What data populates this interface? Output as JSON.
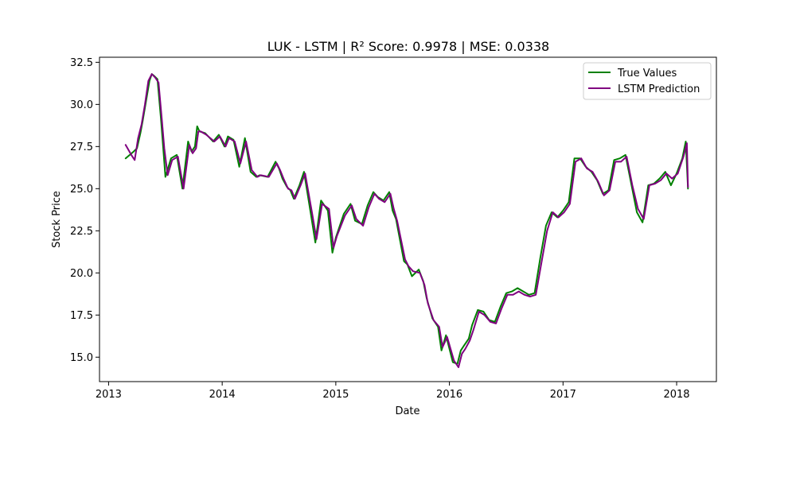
{
  "chart_data": {
    "type": "line",
    "title": "LUK - LSTM | R² Score: 0.9978 | MSE: 0.0338",
    "xlabel": "Date",
    "ylabel": "Stock Price",
    "xlim": [
      2012.92,
      2018.35
    ],
    "ylim": [
      13.55,
      32.8
    ],
    "xticks": [
      2013,
      2014,
      2015,
      2016,
      2017,
      2018
    ],
    "xtick_labels": [
      "2013",
      "2014",
      "2015",
      "2016",
      "2017",
      "2018"
    ],
    "yticks": [
      15.0,
      17.5,
      20.0,
      22.5,
      25.0,
      27.5,
      30.0,
      32.5
    ],
    "ytick_labels": [
      "15.0",
      "17.5",
      "20.0",
      "22.5",
      "25.0",
      "27.5",
      "30.0",
      "32.5"
    ],
    "grid": false,
    "legend_position": "top-right",
    "series": [
      {
        "name": "True Values",
        "color": "#008000",
        "x": [
          2013.15,
          2013.22,
          2013.25,
          2013.28,
          2013.3,
          2013.33,
          2013.36,
          2013.38,
          2013.4,
          2013.43,
          2013.46,
          2013.48,
          2013.5,
          2013.55,
          2013.6,
          2013.65,
          2013.7,
          2013.73,
          2013.76,
          2013.78,
          2013.8,
          2013.85,
          2013.92,
          2013.97,
          2014.02,
          2014.05,
          2014.1,
          2014.15,
          2014.2,
          2014.25,
          2014.3,
          2014.33,
          2014.4,
          2014.47,
          2014.5,
          2014.53,
          2014.57,
          2014.6,
          2014.63,
          2014.68,
          2014.72,
          2014.78,
          2014.82,
          2014.87,
          2014.93,
          2014.97,
          2015.0,
          2015.07,
          2015.13,
          2015.17,
          2015.23,
          2015.28,
          2015.33,
          2015.37,
          2015.42,
          2015.47,
          2015.5,
          2015.53,
          2015.6,
          2015.63,
          2015.67,
          2015.73,
          2015.77,
          2015.8,
          2015.85,
          2015.9,
          2015.93,
          2015.97,
          2016.03,
          2016.07,
          2016.1,
          2016.13,
          2016.17,
          2016.2,
          2016.25,
          2016.3,
          2016.35,
          2016.4,
          2016.45,
          2016.5,
          2016.55,
          2016.6,
          2016.65,
          2016.7,
          2016.75,
          2016.8,
          2016.85,
          2016.9,
          2016.95,
          2017.0,
          2017.05,
          2017.1,
          2017.15,
          2017.2,
          2017.25,
          2017.3,
          2017.35,
          2017.4,
          2017.45,
          2017.5,
          2017.55,
          2017.6,
          2017.65,
          2017.7,
          2017.75,
          2017.8,
          2017.85,
          2017.9,
          2017.95,
          2018.0,
          2018.05,
          2018.08,
          2018.1
        ],
        "y": [
          26.8,
          27.2,
          27.4,
          28.3,
          29.0,
          30.2,
          31.4,
          31.8,
          31.7,
          31.5,
          29.2,
          27.5,
          25.7,
          26.8,
          27.0,
          25.0,
          27.8,
          27.2,
          27.5,
          28.7,
          28.4,
          28.3,
          27.8,
          28.2,
          27.5,
          28.1,
          27.9,
          26.3,
          28.0,
          26.0,
          25.7,
          25.8,
          25.7,
          26.6,
          26.2,
          25.6,
          25.1,
          24.9,
          24.4,
          25.2,
          26.0,
          23.5,
          21.8,
          24.3,
          23.7,
          21.2,
          22.1,
          23.5,
          24.1,
          23.1,
          22.9,
          24.0,
          24.8,
          24.5,
          24.3,
          24.8,
          23.7,
          23.2,
          20.7,
          20.5,
          19.8,
          20.2,
          19.5,
          18.5,
          17.3,
          16.8,
          15.4,
          16.3,
          14.7,
          14.6,
          15.4,
          15.7,
          16.1,
          16.9,
          17.8,
          17.7,
          17.2,
          17.1,
          18.0,
          18.8,
          18.9,
          19.1,
          18.9,
          18.7,
          18.8,
          20.9,
          22.8,
          23.6,
          23.3,
          23.7,
          24.2,
          26.8,
          26.8,
          26.3,
          26.0,
          25.5,
          24.7,
          24.9,
          26.7,
          26.8,
          27.0,
          25.3,
          23.6,
          23.0,
          25.2,
          25.3,
          25.6,
          26.0,
          25.2,
          25.9,
          26.8,
          27.8,
          25.0
        ],
        "line_width": 2
      },
      {
        "name": "LSTM Prediction",
        "color": "#800080",
        "x": [
          2013.15,
          2013.2,
          2013.23,
          2013.26,
          2013.29,
          2013.32,
          2013.35,
          2013.38,
          2013.41,
          2013.44,
          2013.47,
          2013.49,
          2013.52,
          2013.56,
          2013.61,
          2013.66,
          2013.71,
          2013.74,
          2013.77,
          2013.79,
          2013.81,
          2013.86,
          2013.93,
          2013.98,
          2014.03,
          2014.06,
          2014.11,
          2014.16,
          2014.21,
          2014.26,
          2014.31,
          2014.34,
          2014.41,
          2014.48,
          2014.51,
          2014.54,
          2014.58,
          2014.61,
          2014.64,
          2014.69,
          2014.73,
          2014.79,
          2014.83,
          2014.88,
          2014.94,
          2014.98,
          2015.01,
          2015.08,
          2015.14,
          2015.18,
          2015.24,
          2015.29,
          2015.34,
          2015.38,
          2015.43,
          2015.48,
          2015.51,
          2015.54,
          2015.61,
          2015.64,
          2015.68,
          2015.74,
          2015.78,
          2015.81,
          2015.86,
          2015.91,
          2015.94,
          2015.98,
          2016.04,
          2016.08,
          2016.11,
          2016.14,
          2016.18,
          2016.21,
          2016.26,
          2016.31,
          2016.36,
          2016.41,
          2016.46,
          2016.51,
          2016.56,
          2016.61,
          2016.66,
          2016.71,
          2016.76,
          2016.81,
          2016.86,
          2016.91,
          2016.96,
          2017.01,
          2017.06,
          2017.11,
          2017.16,
          2017.21,
          2017.26,
          2017.31,
          2017.36,
          2017.41,
          2017.46,
          2017.51,
          2017.56,
          2017.61,
          2017.66,
          2017.71,
          2017.76,
          2017.81,
          2017.86,
          2017.91,
          2017.96,
          2018.01,
          2018.06,
          2018.09,
          2018.1
        ],
        "y": [
          27.6,
          27.0,
          26.7,
          28.0,
          28.8,
          30.0,
          31.4,
          31.8,
          31.6,
          31.3,
          29.0,
          27.4,
          25.8,
          26.7,
          26.9,
          25.0,
          27.6,
          27.1,
          27.4,
          28.4,
          28.4,
          28.2,
          27.8,
          28.1,
          27.5,
          28.0,
          27.8,
          26.5,
          27.8,
          26.1,
          25.7,
          25.8,
          25.7,
          26.5,
          26.1,
          25.6,
          25.0,
          24.9,
          24.4,
          25.2,
          25.9,
          23.6,
          22.0,
          24.1,
          23.8,
          21.5,
          22.2,
          23.4,
          24.0,
          23.2,
          22.8,
          23.9,
          24.7,
          24.4,
          24.2,
          24.7,
          23.8,
          23.1,
          20.8,
          20.4,
          20.1,
          20.0,
          19.3,
          18.2,
          17.2,
          16.8,
          15.6,
          16.2,
          14.8,
          14.4,
          15.2,
          15.5,
          16.0,
          16.6,
          17.7,
          17.5,
          17.1,
          17.0,
          17.9,
          18.7,
          18.7,
          18.9,
          18.7,
          18.6,
          18.7,
          20.6,
          22.5,
          23.6,
          23.3,
          23.6,
          24.1,
          26.6,
          26.8,
          26.2,
          26.0,
          25.4,
          24.6,
          24.9,
          26.6,
          26.6,
          26.9,
          25.2,
          23.8,
          23.2,
          25.2,
          25.3,
          25.5,
          25.9,
          25.6,
          25.9,
          26.9,
          27.7,
          25.1
        ],
        "line_width": 2
      }
    ]
  }
}
